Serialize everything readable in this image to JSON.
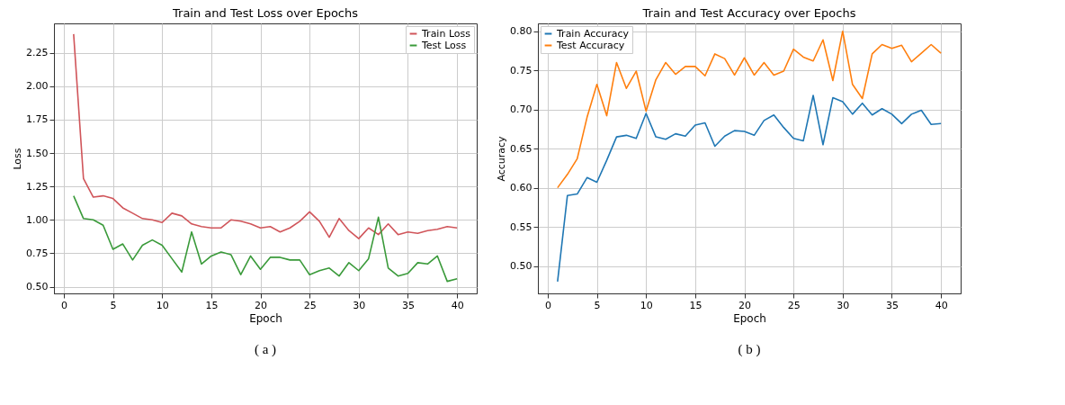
{
  "chart_data": [
    {
      "type": "line",
      "title": "Train and Test Loss over Epochs",
      "xlabel": "Epoch",
      "ylabel": "Loss",
      "x": [
        1,
        2,
        3,
        4,
        5,
        6,
        7,
        8,
        9,
        10,
        11,
        12,
        13,
        14,
        15,
        16,
        17,
        18,
        19,
        20,
        21,
        22,
        23,
        24,
        25,
        26,
        27,
        28,
        29,
        30,
        31,
        32,
        33,
        34,
        35,
        36,
        37,
        38,
        39,
        40
      ],
      "series": [
        {
          "name": "Train Loss",
          "color": "#d0555a",
          "values": [
            2.39,
            1.31,
            1.17,
            1.18,
            1.16,
            1.09,
            1.05,
            1.01,
            1.0,
            0.98,
            1.05,
            1.03,
            0.97,
            0.95,
            0.94,
            0.94,
            1.0,
            0.99,
            0.97,
            0.94,
            0.95,
            0.91,
            0.94,
            0.99,
            1.06,
            0.99,
            0.87,
            1.01,
            0.92,
            0.86,
            0.94,
            0.89,
            0.97,
            0.89,
            0.91,
            0.9,
            0.92,
            0.93,
            0.95,
            0.94
          ]
        },
        {
          "name": "Test Loss",
          "color": "#3a9a3a",
          "values": [
            1.18,
            1.01,
            1.0,
            0.96,
            0.78,
            0.82,
            0.7,
            0.81,
            0.85,
            0.81,
            0.71,
            0.61,
            0.91,
            0.67,
            0.73,
            0.76,
            0.74,
            0.59,
            0.73,
            0.63,
            0.72,
            0.72,
            0.7,
            0.7,
            0.59,
            0.62,
            0.64,
            0.58,
            0.68,
            0.62,
            0.71,
            1.02,
            0.64,
            0.58,
            0.6,
            0.68,
            0.67,
            0.73,
            0.54,
            0.56
          ]
        }
      ],
      "xlim": [
        -1,
        42
      ],
      "xticks": [
        0,
        5,
        10,
        15,
        20,
        25,
        30,
        35,
        40
      ],
      "ylim": [
        0.45,
        2.47
      ],
      "yticks": [
        {
          "value": 0.5,
          "label": "0.50"
        },
        0.75,
        {
          "value": 1,
          "label": "1.00"
        },
        1.25,
        {
          "value": 1.5,
          "label": "1.50"
        },
        1.75,
        {
          "value": 2,
          "label": "2.00"
        },
        2.25
      ],
      "grid": true,
      "legend": "top right",
      "annotations": [
        "( a )"
      ]
    },
    {
      "type": "line",
      "title": "Train and Test Accuracy over Epochs",
      "xlabel": "Epoch",
      "ylabel": "Accuracy",
      "x": [
        1,
        2,
        3,
        4,
        5,
        6,
        7,
        8,
        9,
        10,
        11,
        12,
        13,
        14,
        15,
        16,
        17,
        18,
        19,
        20,
        21,
        22,
        23,
        24,
        25,
        26,
        27,
        28,
        29,
        30,
        31,
        32,
        33,
        34,
        35,
        36,
        37,
        38,
        39,
        40
      ],
      "series": [
        {
          "name": "Train Accuracy",
          "color": "#1f77b4",
          "values": [
            0.48,
            0.59,
            0.592,
            0.613,
            0.607,
            0.635,
            0.665,
            0.667,
            0.663,
            0.695,
            0.665,
            0.662,
            0.669,
            0.666,
            0.68,
            0.683,
            0.653,
            0.666,
            0.673,
            0.672,
            0.667,
            0.686,
            0.693,
            0.677,
            0.663,
            0.66,
            0.718,
            0.655,
            0.715,
            0.71,
            0.694,
            0.708,
            0.693,
            0.701,
            0.694,
            0.682,
            0.694,
            0.699,
            0.681,
            0.682
          ]
        },
        {
          "name": "Test Accuracy",
          "color": "#ff7f0e",
          "values": [
            0.6,
            0.617,
            0.637,
            0.69,
            0.732,
            0.692,
            0.76,
            0.727,
            0.749,
            0.698,
            0.738,
            0.76,
            0.745,
            0.755,
            0.755,
            0.743,
            0.771,
            0.765,
            0.744,
            0.766,
            0.744,
            0.76,
            0.744,
            0.749,
            0.777,
            0.767,
            0.762,
            0.789,
            0.737,
            0.8,
            0.732,
            0.714,
            0.771,
            0.783,
            0.778,
            0.782,
            0.761,
            0.772,
            0.783,
            0.772
          ]
        }
      ],
      "xlim": [
        -1,
        42
      ],
      "xticks": [
        0,
        5,
        10,
        15,
        20,
        25,
        30,
        35,
        40
      ],
      "ylim": [
        0.465,
        0.81
      ],
      "yticks": [
        {
          "value": 0.5,
          "label": "0.50"
        },
        0.55,
        {
          "value": 0.6,
          "label": "0.60"
        },
        0.65,
        {
          "value": 0.7,
          "label": "0.70"
        },
        0.75,
        {
          "value": 0.8,
          "label": "0.80"
        }
      ],
      "grid": true,
      "legend": "top left",
      "annotations": [
        "( b )"
      ]
    }
  ]
}
